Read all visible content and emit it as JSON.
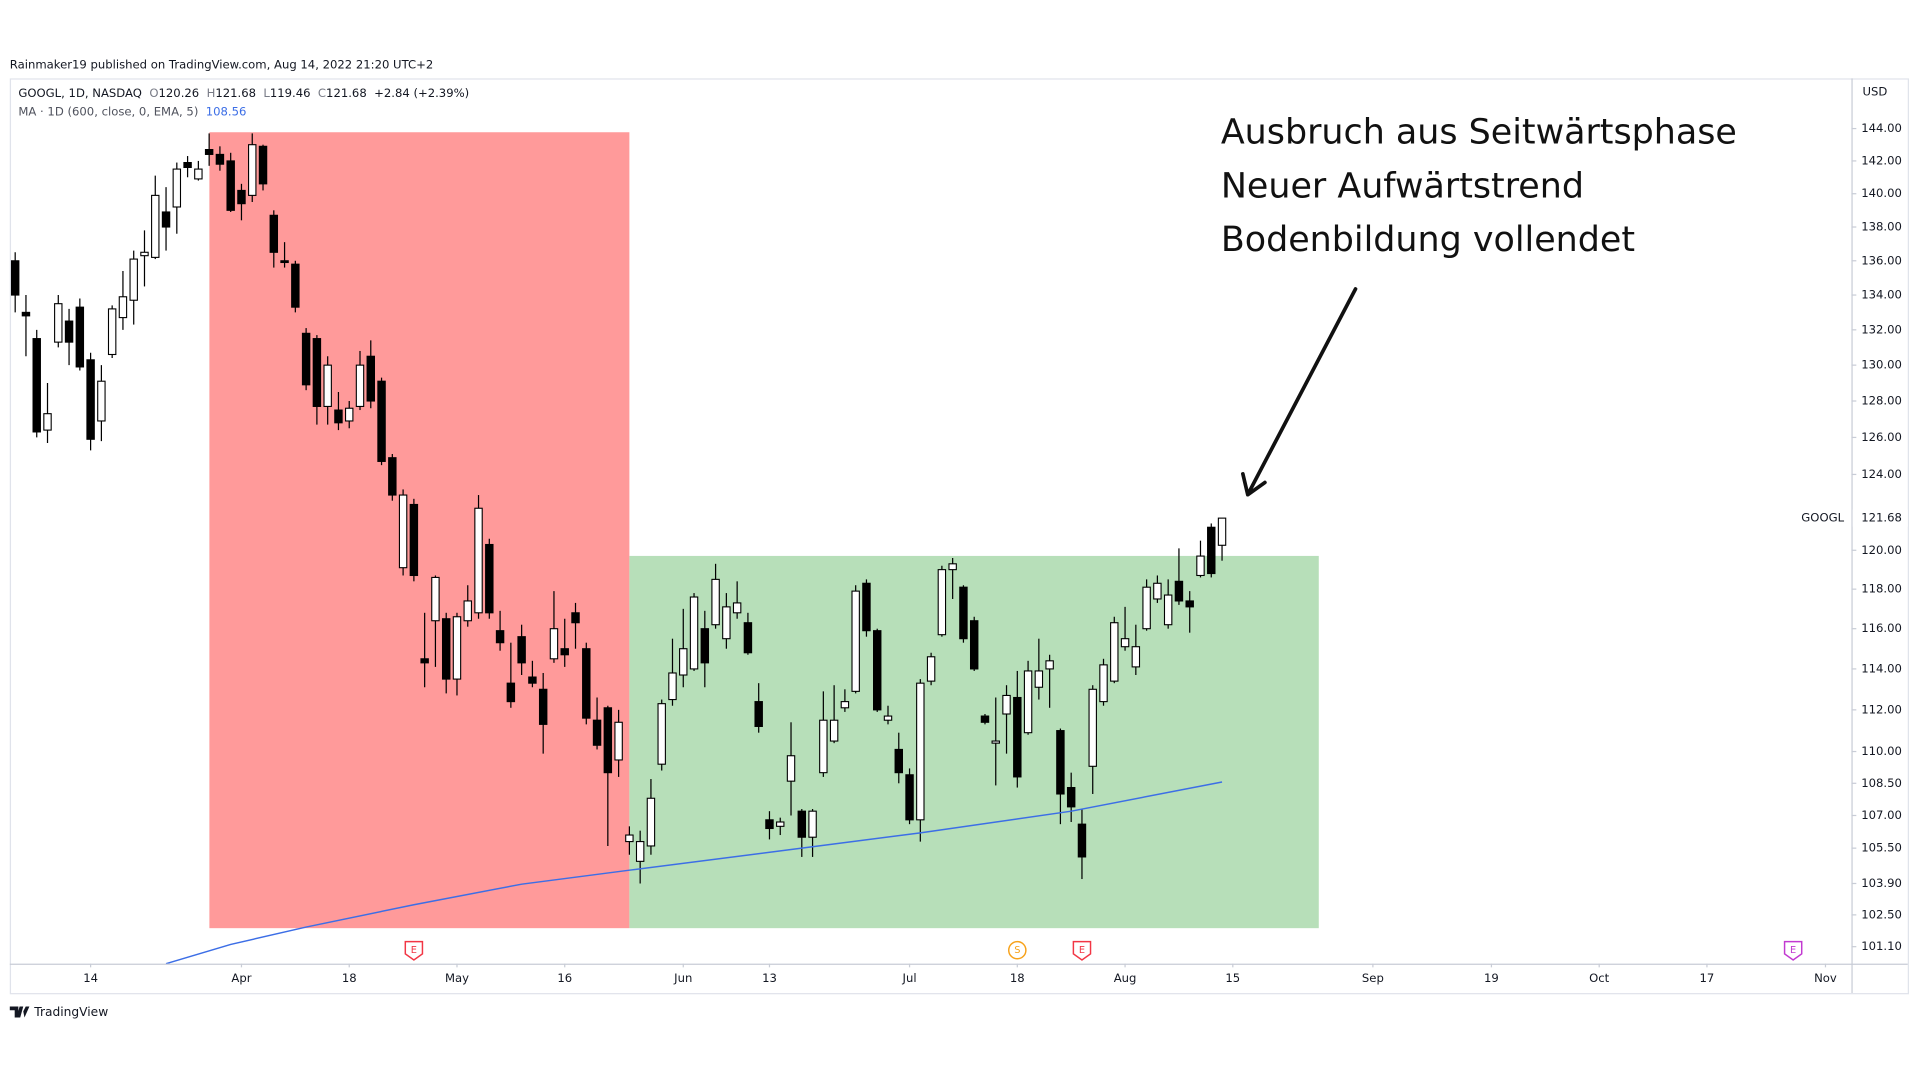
{
  "header": "Rainmaker19 published on TradingView.com, Aug 14, 2022 21:20 UTC+2",
  "footer": "TradingView",
  "chart_data": {
    "type": "candlestick",
    "symbol": "GOOGL, 1D, NASDAQ",
    "legend_fields": [
      "O",
      "H",
      "L",
      "C"
    ],
    "change": "+2.84 (+2.39%)",
    "currency": "USD",
    "price_label_name": "GOOGL",
    "up_color": "#ffffff",
    "down_color": "#000000",
    "categories": [
      "Mar 3",
      "Mar 4",
      "Mar 7",
      "Mar 8",
      "Mar 9",
      "Mar 10",
      "Mar 11",
      "Mar 14",
      "Mar 15",
      "Mar 16",
      "Mar 17",
      "Mar 18",
      "Mar 21",
      "Mar 22",
      "Mar 23",
      "Mar 24",
      "Mar 25",
      "Mar 28",
      "Mar 29",
      "Mar 30",
      "Mar 31",
      "Apr 1",
      "Apr 4",
      "Apr 5",
      "Apr 6",
      "Apr 7",
      "Apr 8",
      "Apr 11",
      "Apr 12",
      "Apr 13",
      "Apr 14",
      "Apr 18",
      "Apr 19",
      "Apr 20",
      "Apr 21",
      "Apr 22",
      "Apr 25",
      "Apr 26",
      "Apr 27",
      "Apr 28",
      "Apr 29",
      "May 2",
      "May 3",
      "May 4",
      "May 5",
      "May 6",
      "May 9",
      "May 10",
      "May 11",
      "May 12",
      "May 13",
      "May 16",
      "May 17",
      "May 18",
      "May 19",
      "May 20",
      "May 23",
      "May 24",
      "May 25",
      "May 26",
      "May 27",
      "May 31",
      "Jun 1",
      "Jun 2",
      "Jun 3",
      "Jun 6",
      "Jun 7",
      "Jun 8",
      "Jun 9",
      "Jun 10",
      "Jun 13",
      "Jun 14",
      "Jun 15",
      "Jun 16",
      "Jun 17",
      "Jun 21",
      "Jun 22",
      "Jun 23",
      "Jun 24",
      "Jun 27",
      "Jun 28",
      "Jun 29",
      "Jun 30",
      "Jul 1",
      "Jul 5",
      "Jul 6",
      "Jul 7",
      "Jul 8",
      "Jul 11",
      "Jul 12",
      "Jul 13",
      "Jul 14",
      "Jul 15",
      "Jul 18",
      "Jul 19",
      "Jul 20",
      "Jul 21",
      "Jul 22",
      "Jul 25",
      "Jul 26",
      "Jul 27",
      "Jul 28",
      "Jul 29",
      "Aug 1",
      "Aug 2",
      "Aug 3",
      "Aug 4",
      "Aug 5",
      "Aug 8",
      "Aug 9",
      "Aug 10",
      "Aug 11",
      "Aug 12",
      "Aug 15",
      "Aug 16",
      "Aug 17",
      "Aug 18",
      "Aug 19",
      "Aug 22",
      "Aug 23",
      "Aug 24",
      "Aug 25",
      "Aug 26",
      "Aug 29",
      "Aug 30",
      "Aug 31",
      "Sep 1",
      "Sep 2",
      "Sep 6",
      "Sep 7",
      "Sep 8",
      "Sep 9",
      "Sep 12",
      "Sep 13",
      "Sep 14",
      "Sep 15",
      "Sep 16",
      "Sep 19",
      "Sep 20",
      "Sep 21",
      "Sep 22",
      "Sep 23",
      "Sep 26",
      "Sep 27",
      "Sep 28",
      "Sep 29",
      "Sep 30",
      "Oct 3",
      "Oct 4",
      "Oct 5",
      "Oct 6",
      "Oct 7",
      "Oct 10",
      "Oct 11",
      "Oct 12",
      "Oct 13",
      "Oct 14",
      "Oct 17",
      "Oct 18",
      "Oct 19",
      "Oct 20",
      "Oct 21",
      "Oct 24",
      "Oct 25",
      "Oct 26",
      "Oct 27",
      "Oct 28",
      "Oct 31",
      "Nov 1",
      "Nov 2",
      "Nov 3"
    ],
    "open": [
      136,
      133,
      131.5,
      126.4,
      131.3,
      132.5,
      133.3,
      130.3,
      126.9,
      130.6,
      132.7,
      133.7,
      136.3,
      136.2,
      138.9,
      139.2,
      141.9,
      140.9,
      142.7,
      142.4,
      142,
      140.2,
      139.9,
      142.9,
      138.7,
      136,
      135.8,
      131.8,
      131.5,
      127.7,
      127.5,
      126.9,
      127.7,
      130.5,
      129.1,
      124.9,
      119.1,
      122.4,
      114.5,
      116.4,
      116.5,
      113.5,
      116.4,
      116.8,
      120.3,
      115.9,
      113.3,
      115.6,
      113.6,
      113,
      114.5,
      115,
      116.8,
      115,
      111.5,
      112.1,
      109.6,
      105.8,
      104.9,
      105.6,
      109.4,
      112.5,
      113.7,
      114,
      116,
      116.2,
      115.5,
      116.8,
      116.3,
      112.4,
      106.8,
      106.5,
      108.6,
      107.2,
      106,
      109,
      110.5,
      112.1,
      112.9,
      118.3,
      115.9,
      111.5,
      110.1,
      108.9,
      106.8,
      113.4,
      115.7,
      119,
      118.1,
      116.4,
      111.7,
      110.4,
      111.8,
      112.6,
      110.9,
      113.1,
      114,
      111,
      108.3,
      106.6,
      109.3,
      112.4,
      113.4,
      115.1,
      114.1,
      116,
      117.5,
      116.2,
      118.4,
      117.4,
      118.7,
      121.2,
      120.26,
      null,
      null,
      null,
      null,
      null,
      null,
      null,
      null,
      null,
      null,
      null,
      null,
      null,
      null,
      null,
      null,
      null,
      null,
      null,
      null,
      null,
      null,
      null,
      null,
      null,
      null,
      null,
      null,
      null,
      null,
      null,
      null,
      null,
      null,
      null,
      null,
      null,
      null,
      null,
      null,
      null,
      null,
      null,
      null,
      null,
      null,
      null,
      null,
      null,
      null,
      null,
      null,
      null,
      null,
      null,
      null,
      null,
      null
    ],
    "high": [
      136.5,
      134,
      132,
      129,
      134,
      133.2,
      133.8,
      130.7,
      130,
      133.4,
      135.4,
      136.6,
      137.8,
      141.1,
      140.4,
      141.9,
      142.3,
      142,
      143.7,
      142.9,
      142.5,
      140.6,
      143.7,
      143,
      139,
      137.1,
      136,
      132.1,
      131.7,
      130.5,
      128.5,
      128,
      130.8,
      131.4,
      129.3,
      125.1,
      123.2,
      122.7,
      116.8,
      118.7,
      116.8,
      116.8,
      118.2,
      122.9,
      120.6,
      116.9,
      115.3,
      116.2,
      114.4,
      113.8,
      117.9,
      116.5,
      117.3,
      115.3,
      112.6,
      112.2,
      112,
      106.5,
      106.3,
      108.7,
      112.5,
      115.5,
      117,
      117.8,
      116.9,
      119.3,
      117.8,
      118.4,
      116.8,
      113.3,
      107.2,
      106.9,
      111.4,
      107.3,
      107.3,
      112.9,
      113.2,
      113,
      118.2,
      118.5,
      116,
      112.2,
      110.9,
      109.2,
      113.5,
      114.8,
      119.2,
      119.6,
      118.2,
      116.6,
      111.8,
      112.6,
      113.2,
      113.9,
      114.4,
      115.5,
      114.7,
      111.1,
      109,
      107.3,
      113.2,
      114.5,
      116.6,
      117.1,
      116.2,
      118.5,
      118.7,
      118.5,
      120.1,
      117.9,
      120.5,
      121.4,
      121.68,
      null,
      null,
      null,
      null,
      null,
      null,
      null,
      null,
      null,
      null,
      null,
      null,
      null,
      null,
      null,
      null,
      null,
      null,
      null,
      null,
      null,
      null,
      null,
      null,
      null,
      null,
      null,
      null,
      null,
      null,
      null,
      null,
      null,
      null,
      null,
      null,
      null,
      null,
      null,
      null,
      null,
      null,
      null,
      null,
      null,
      null,
      null,
      null,
      null,
      null,
      null,
      null,
      null,
      null,
      null,
      null,
      null,
      null
    ],
    "low": [
      133,
      130.5,
      126,
      125.7,
      131,
      130,
      129.7,
      125.3,
      125.8,
      130.4,
      132,
      132.3,
      134.5,
      136.1,
      136.6,
      137.6,
      141,
      140.8,
      141.7,
      141.4,
      138.9,
      138.4,
      139.5,
      140.2,
      135.6,
      135.6,
      133,
      128.6,
      126.7,
      126.7,
      126.4,
      126.5,
      127.5,
      127.6,
      124.5,
      122.6,
      118.7,
      118.4,
      113.1,
      114.1,
      112.8,
      112.7,
      116.1,
      116.5,
      116.5,
      114.9,
      112.1,
      113.7,
      113.1,
      109.9,
      114.3,
      114.1,
      115,
      111.3,
      110.1,
      105.6,
      108.8,
      105.2,
      103.9,
      105.2,
      109.1,
      112.2,
      113.1,
      113.9,
      113.1,
      116,
      115,
      116.5,
      114.7,
      110.9,
      105.9,
      106.1,
      107,
      105.1,
      105.1,
      108.8,
      110.4,
      111.9,
      112.8,
      115.6,
      111.9,
      111.3,
      108.5,
      106.6,
      105.8,
      113.2,
      115.6,
      117.5,
      115.3,
      113.9,
      111.3,
      108.4,
      109.9,
      108.3,
      110.8,
      112.5,
      112.1,
      106.6,
      106.7,
      104.1,
      108,
      112.2,
      113.3,
      114.9,
      113.7,
      115.9,
      117.3,
      116,
      117.2,
      115.8,
      118.6,
      118.6,
      119.46,
      null,
      null,
      null,
      null,
      null,
      null,
      null,
      null,
      null,
      null,
      null,
      null,
      null,
      null,
      null,
      null,
      null,
      null,
      null,
      null,
      null,
      null,
      null,
      null,
      null,
      null,
      null,
      null,
      null,
      null,
      null,
      null,
      null,
      null,
      null,
      null,
      null,
      null,
      null,
      null,
      null,
      null,
      null,
      null,
      null,
      null,
      null,
      null,
      null,
      null,
      null,
      null,
      null,
      null,
      null,
      null,
      null,
      null
    ],
    "close": [
      134,
      132.8,
      126.3,
      127.3,
      133.5,
      131.3,
      129.9,
      125.9,
      129.1,
      133.2,
      133.9,
      136.1,
      136.5,
      139.9,
      138,
      141.5,
      141.6,
      141.5,
      142.4,
      141.8,
      139,
      139.4,
      143,
      140.6,
      136.5,
      135.9,
      133.3,
      128.9,
      127.7,
      130,
      126.8,
      127.6,
      130,
      128,
      124.7,
      122.9,
      122.9,
      118.7,
      114.3,
      118.6,
      113.5,
      116.6,
      117.4,
      122.2,
      116.8,
      115.3,
      112.4,
      114.3,
      113.3,
      111.3,
      116,
      114.7,
      116.3,
      111.6,
      110.3,
      109,
      111.4,
      106.1,
      105.8,
      107.8,
      112.3,
      113.8,
      115,
      117.6,
      114.3,
      118.5,
      117.1,
      117.3,
      114.8,
      111.2,
      106.4,
      106.7,
      109.8,
      106,
      107.2,
      111.5,
      111.5,
      112.4,
      117.9,
      115.9,
      112,
      111.7,
      109,
      106.8,
      113.3,
      114.6,
      119,
      119.3,
      115.5,
      114,
      111.4,
      110.5,
      112.7,
      108.8,
      113.9,
      113.9,
      114.4,
      108,
      107.4,
      105.1,
      113,
      114.2,
      116.3,
      115.5,
      115.1,
      118.1,
      118.3,
      117.7,
      117.4,
      117.1,
      119.7,
      118.8,
      121.68,
      null,
      null,
      null,
      null,
      null,
      null,
      null,
      null,
      null,
      null,
      null,
      null,
      null,
      null,
      null,
      null,
      null,
      null,
      null,
      null,
      null,
      null,
      null,
      null,
      null,
      null,
      null,
      null,
      null,
      null,
      null,
      null,
      null,
      null,
      null,
      null,
      null,
      null,
      null,
      null,
      null,
      null,
      null,
      null,
      null,
      null,
      null,
      null,
      null,
      null,
      null,
      null,
      null,
      null,
      null,
      null,
      null,
      null
    ],
    "ma": {
      "name": "MA · 1D (600, close, 0, EMA, 5)",
      "color": "#3c6ee6",
      "x": [
        "Mar 23",
        "Mar 31",
        "Apr 11",
        "Apr 26",
        "May 10",
        "May 24",
        "Jun 16",
        "Jul 5",
        "Jul 25",
        "Aug 12"
      ],
      "values": [
        100.36,
        101.2,
        101.96,
        102.95,
        103.87,
        104.5,
        105.5,
        106.2,
        107.2,
        108.56
      ]
    },
    "log": true,
    "ylim": [
      100.36,
      147.16
    ],
    "yticks": [
      {
        "value": 144,
        "label": "144.00"
      },
      {
        "value": 142,
        "label": "142.00"
      },
      {
        "value": 140,
        "label": "140.00"
      },
      {
        "value": 138,
        "label": "138.00"
      },
      {
        "value": 136,
        "label": "136.00"
      },
      {
        "value": 134,
        "label": "134.00"
      },
      {
        "value": 132,
        "label": "132.00"
      },
      {
        "value": 130,
        "label": "130.00"
      },
      {
        "value": 128,
        "label": "128.00"
      },
      {
        "value": 126,
        "label": "126.00"
      },
      {
        "value": 124,
        "label": "124.00"
      },
      {
        "value": 120,
        "label": "120.00"
      },
      {
        "value": 118,
        "label": "118.00"
      },
      {
        "value": 116,
        "label": "116.00"
      },
      {
        "value": 114,
        "label": "114.00"
      },
      {
        "value": 112,
        "label": "112.00"
      },
      {
        "value": 110,
        "label": "110.00"
      },
      {
        "value": 108.5,
        "label": "108.50"
      },
      {
        "value": 107,
        "label": "107.00"
      },
      {
        "value": 105.5,
        "label": "105.50"
      },
      {
        "value": 103.9,
        "label": "103.90"
      },
      {
        "value": 102.5,
        "label": "102.50"
      },
      {
        "value": 101.1,
        "label": "101.10"
      }
    ],
    "xticks": [
      {
        "value": "Mar 14",
        "label": "14"
      },
      {
        "value": "Apr 1",
        "label": "Apr"
      },
      {
        "value": "Apr 18",
        "label": "18"
      },
      {
        "value": "May 2",
        "label": "May"
      },
      {
        "value": "May 16",
        "label": "16"
      },
      {
        "value": "Jun 1",
        "label": "Jun"
      },
      {
        "value": "Jun 13",
        "label": "13"
      },
      {
        "value": "Jul 1",
        "label": "Jul"
      },
      {
        "value": "Jul 18",
        "label": "18"
      },
      {
        "value": "Aug 1",
        "label": "Aug"
      },
      {
        "value": "Aug 15",
        "label": "15"
      },
      {
        "value": "Sep 1",
        "label": "Sep"
      },
      {
        "value": "Sep 19",
        "label": "19"
      },
      {
        "value": "Oct 3",
        "label": "Oct"
      },
      {
        "value": "Oct 17",
        "label": "17"
      },
      {
        "value": "Nov 1",
        "label": "Nov"
      }
    ],
    "events": [
      {
        "date": "Apr 26",
        "label": "E",
        "color": "#f23645"
      },
      {
        "date": "Jul 18",
        "label": "S",
        "color": "#f7a21b"
      },
      {
        "date": "Jul 26",
        "label": "E",
        "color": "#f23645"
      },
      {
        "date": "Oct 27",
        "label": "E",
        "color": "#c23ad1"
      }
    ],
    "annotation": [
      "Ausbruch aus Seitwärtsphase",
      "Neuer Aufwärtstrend",
      "Bodenbildung vollendet"
    ]
  }
}
